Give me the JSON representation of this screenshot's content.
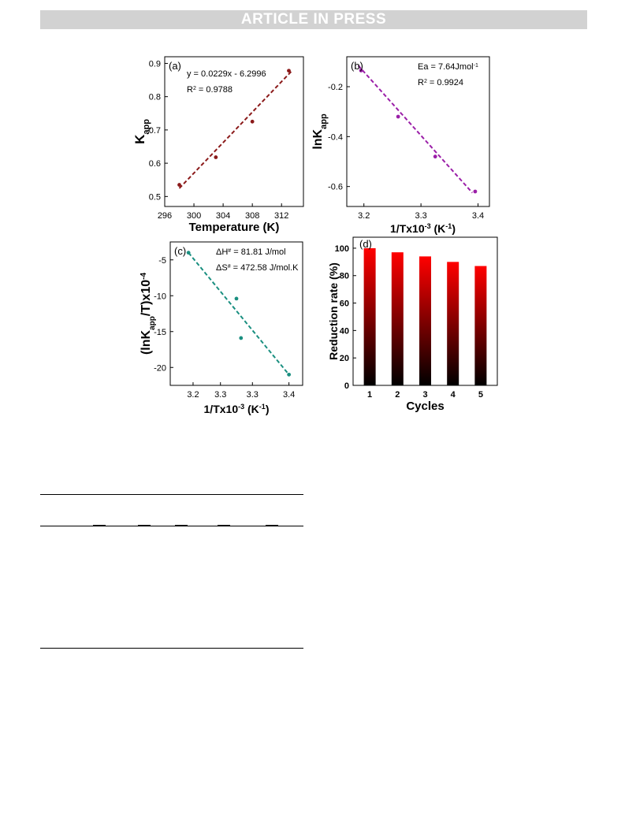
{
  "header": {
    "banner": "ARTICLE IN PRESS"
  },
  "chart_data": [
    {
      "panel": "(a)",
      "type": "scatter",
      "x": [
        298,
        303,
        308,
        313
      ],
      "y": [
        0.535,
        0.618,
        0.725,
        0.878
      ],
      "fit": {
        "x": [
          298,
          313.5
        ],
        "y": [
          0.5246,
          0.8795
        ]
      },
      "xlabel": "Temperature (K)",
      "ylabel_base": "K",
      "ylabel_sub": "app",
      "xlim": [
        296,
        315
      ],
      "ylim": [
        0.47,
        0.92
      ],
      "xticks": [
        "296",
        "300",
        "304",
        "308",
        "312"
      ],
      "yticks": [
        "0.5",
        "0.6",
        "0.7",
        "0.8",
        "0.9"
      ],
      "annotations": [
        {
          "text": "y = 0.0229x - 6.2996"
        },
        {
          "base": "R",
          "sup": "2",
          "rest": " = 0.9788"
        }
      ],
      "color": "#8b1a1a"
    },
    {
      "panel": "(b)",
      "type": "scatter",
      "x": [
        3.195,
        3.26,
        3.325,
        3.395
      ],
      "y": [
        -0.135,
        -0.32,
        -0.48,
        -0.62
      ],
      "fit": {
        "x": [
          3.19,
          3.39
        ],
        "y": [
          -0.115,
          -0.625
        ]
      },
      "xlabel_base": "1/Tx10",
      "xlabel_sup": "-3",
      "xlabel_rest": "(K",
      "xlabel_sup2": "-1",
      "xlabel_end": ")",
      "ylabel_base": "lnK",
      "ylabel_sub": "app",
      "xlim": [
        3.17,
        3.42
      ],
      "ylim": [
        -0.68,
        -0.08
      ],
      "xticks": [
        "3.2",
        "3.3",
        "3.4"
      ],
      "yticks": [
        "-0.2",
        "-0.4",
        "-0.6"
      ],
      "annotations": [
        {
          "base": "Ea = 7.64Jmol",
          "sup": "-1",
          "rest": ""
        },
        {
          "base": "R",
          "sup": "2",
          "rest": " = 0.9924"
        }
      ],
      "color": "#9b1fa8"
    },
    {
      "panel": "(c)",
      "type": "scatter",
      "x": [
        3.19,
        3.295,
        3.305,
        3.41
      ],
      "y": [
        -4,
        -10.4,
        -15.9,
        -21
      ],
      "fit": {
        "x": [
          3.19,
          3.41
        ],
        "y": [
          -4,
          -21
        ]
      },
      "xlabel_base": "1/Tx10",
      "xlabel_sup": "-3",
      "xlabel_rest": "(K",
      "xlabel_sup2": "-1",
      "xlabel_end": ")",
      "ylabel_base": "(lnK",
      "ylabel_sub": "app",
      "ylabel_rest": "/T)x10",
      "ylabel_sup": "-4",
      "xlim": [
        3.15,
        3.44
      ],
      "ylim": [
        -22.5,
        -2.5
      ],
      "xticks": [
        "3.2",
        "3.3",
        "3.3",
        "3.4"
      ],
      "yticks": [
        "-5",
        "-10",
        "-15",
        "-20"
      ],
      "annotations": [
        {
          "base": "ΔH",
          "sup": "#",
          "rest": " = 81.81 J/mol"
        },
        {
          "base": "ΔS",
          "sup": "#",
          "rest": " = 472.58 J/mol.K"
        }
      ],
      "color": "#1a8f80"
    },
    {
      "panel": "(d)",
      "type": "bar",
      "categories": [
        "1",
        "2",
        "3",
        "4",
        "5"
      ],
      "values": [
        100,
        97,
        94,
        90,
        87
      ],
      "xlabel": "Cycles",
      "ylabel": "Reduction rate (%)",
      "ylim": [
        0,
        108
      ],
      "yticks": [
        "0",
        "20",
        "40",
        "60",
        "80",
        "100"
      ],
      "gradient": [
        "#ff0000",
        "#000000"
      ]
    }
  ]
}
